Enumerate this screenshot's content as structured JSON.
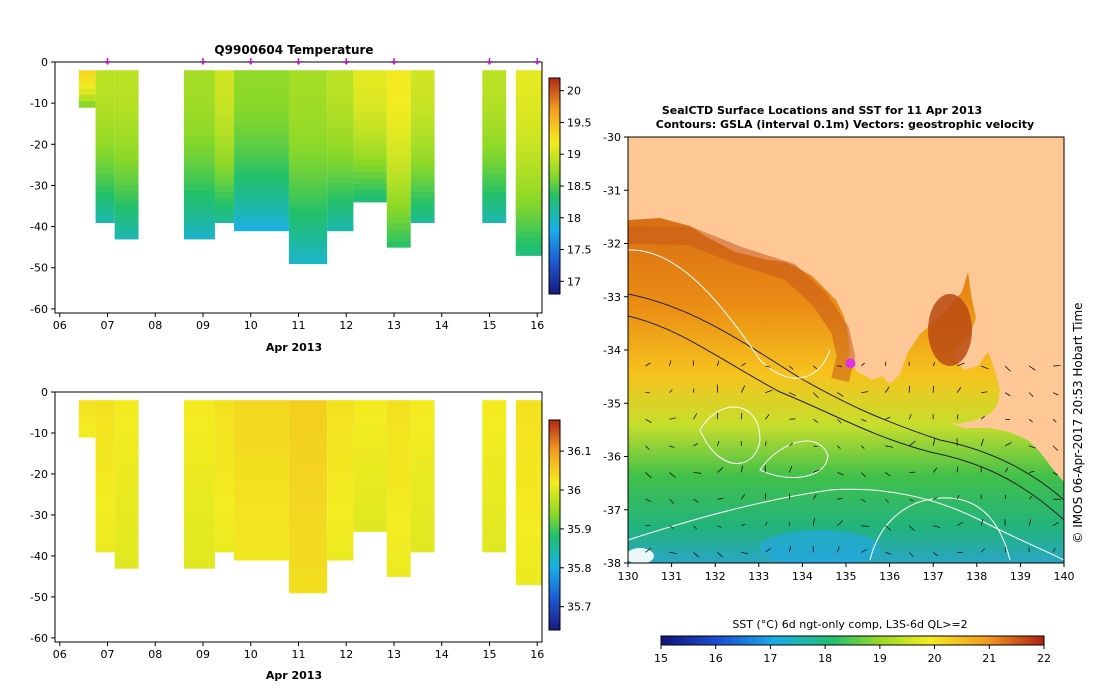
{
  "chart_data": [
    {
      "type": "heatmap",
      "title": "Q9900604  Temperature",
      "xlabel": "Apr 2013",
      "x_ticks": [
        "06",
        "07",
        "08",
        "09",
        "10",
        "11",
        "12",
        "13",
        "14",
        "15",
        "16"
      ],
      "y_ticks": [
        "0",
        "-10",
        "-20",
        "-30",
        "-40",
        "-50",
        "-60"
      ],
      "ylim": [
        -61,
        0
      ],
      "colorbar_ticks": [
        "20",
        "19.5",
        "19",
        "18.5",
        "18",
        "17.5",
        "17"
      ],
      "colorbar_range": [
        16.8,
        20.2
      ],
      "casts": [
        {
          "start": 6.4,
          "end": 6.75,
          "bottom": -11,
          "value": 19.3
        },
        {
          "start": 6.75,
          "end": 7.15,
          "bottom": -39,
          "value": 18.9
        },
        {
          "start": 7.15,
          "end": 7.65,
          "bottom": -43,
          "value": 18.9
        },
        {
          "start": 8.6,
          "end": 9.25,
          "bottom": -43,
          "value": 18.8
        },
        {
          "start": 9.25,
          "end": 9.65,
          "bottom": -39,
          "value": 19.0
        },
        {
          "start": 9.65,
          "end": 10.8,
          "bottom": -41,
          "value": 18.7
        },
        {
          "start": 10.8,
          "end": 11.6,
          "bottom": -49,
          "value": 18.8
        },
        {
          "start": 11.6,
          "end": 12.15,
          "bottom": -41,
          "value": 18.9
        },
        {
          "start": 12.15,
          "end": 12.85,
          "bottom": -34,
          "value": 19.1
        },
        {
          "start": 12.85,
          "end": 13.35,
          "bottom": -45,
          "value": 19.2
        },
        {
          "start": 13.35,
          "end": 13.85,
          "bottom": -39,
          "value": 19.0
        },
        {
          "start": 14.85,
          "end": 15.35,
          "bottom": -39,
          "value": 18.9
        },
        {
          "start": 15.55,
          "end": 16.1,
          "bottom": -47,
          "value": 19.1
        }
      ],
      "markers_x": [
        7.0,
        9.0,
        10.0,
        11.0,
        12.0,
        13.0,
        15.0,
        16.0
      ]
    },
    {
      "type": "heatmap",
      "title": "",
      "xlabel": "Apr 2013",
      "x_ticks": [
        "06",
        "07",
        "08",
        "09",
        "10",
        "11",
        "12",
        "13",
        "14",
        "15",
        "16"
      ],
      "y_ticks": [
        "0",
        "-10",
        "-20",
        "-30",
        "-40",
        "-50",
        "-60"
      ],
      "ylim": [
        -61,
        0
      ],
      "colorbar_ticks": [
        "36.1",
        "36",
        "35.9",
        "35.8",
        "35.7"
      ],
      "colorbar_range": [
        35.64,
        36.18
      ],
      "casts": [
        {
          "start": 6.4,
          "end": 6.75,
          "bottom": -11,
          "value": 36.03
        },
        {
          "start": 6.75,
          "end": 7.15,
          "bottom": -39,
          "value": 36.03
        },
        {
          "start": 7.15,
          "end": 7.65,
          "bottom": -43,
          "value": 36.02
        },
        {
          "start": 8.6,
          "end": 9.25,
          "bottom": -43,
          "value": 36.02
        },
        {
          "start": 9.25,
          "end": 9.65,
          "bottom": -39,
          "value": 36.03
        },
        {
          "start": 9.65,
          "end": 10.8,
          "bottom": -41,
          "value": 36.04
        },
        {
          "start": 10.8,
          "end": 11.6,
          "bottom": -49,
          "value": 36.05
        },
        {
          "start": 11.6,
          "end": 12.15,
          "bottom": -41,
          "value": 36.03
        },
        {
          "start": 12.15,
          "end": 12.85,
          "bottom": -34,
          "value": 36.02
        },
        {
          "start": 12.85,
          "end": 13.35,
          "bottom": -45,
          "value": 36.03
        },
        {
          "start": 13.35,
          "end": 13.85,
          "bottom": -39,
          "value": 36.02
        },
        {
          "start": 14.85,
          "end": 15.35,
          "bottom": -39,
          "value": 36.02
        },
        {
          "start": 15.55,
          "end": 16.1,
          "bottom": -47,
          "value": 36.03
        }
      ]
    },
    {
      "type": "heatmap",
      "title": "SealCTD Surface Locations and SST for 11 Apr 2013",
      "subtitle": "Contours: GSLA (interval 0.1m) Vectors: geostrophic velocity",
      "x_ticks": [
        "130",
        "131",
        "132",
        "133",
        "134",
        "135",
        "136",
        "137",
        "138",
        "139",
        "140"
      ],
      "y_ticks": [
        "-30",
        "-31",
        "-32",
        "-33",
        "-34",
        "-35",
        "-36",
        "-37",
        "-38"
      ],
      "xlim": [
        130,
        140
      ],
      "ylim": [
        -38,
        -30
      ],
      "side_label": "© IMOS 06-Apr-2017 20:53 Hobart Time",
      "colorbar_label": "SST (°C) 6d ngt-only comp, L3S-6d QL>=2",
      "colorbar_ticks": [
        "15",
        "16",
        "17",
        "18",
        "19",
        "20",
        "21",
        "22"
      ],
      "colorbar_range": [
        15,
        22
      ],
      "seal_location": {
        "lon": 135.1,
        "lat": -34.25
      }
    }
  ]
}
